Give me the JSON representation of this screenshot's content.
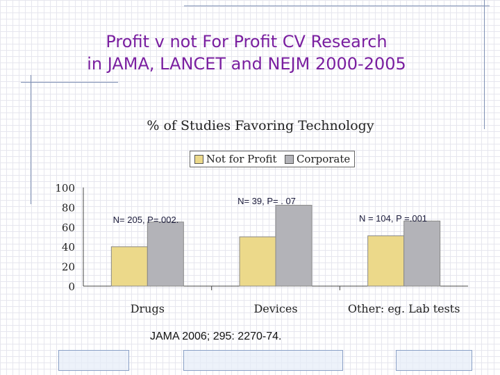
{
  "slide": {
    "title_line1": "Profit v not For Profit CV Research",
    "title_line2": "in JAMA, LANCET and NEJM 2000-2005",
    "citation": "JAMA 2006; 295: 2270-74."
  },
  "colors": {
    "title": "#7a1fa0",
    "not_for_profit": "#ecd98a",
    "corporate": "#b3b3b8"
  },
  "chart_data": {
    "type": "bar",
    "title": "% of Studies Favoring Technology",
    "categories": [
      "Drugs",
      "Devices",
      "Other: eg. Lab tests"
    ],
    "series": [
      {
        "name": "Not for Profit",
        "values": [
          40,
          50,
          51
        ]
      },
      {
        "name": "Corporate",
        "values": [
          65,
          82,
          66
        ]
      }
    ],
    "yticks": [
      0,
      20,
      40,
      60,
      80,
      100
    ],
    "ylim": [
      0,
      100
    ],
    "xlabel": "",
    "ylabel": "",
    "grid": false,
    "legend": "top-center",
    "annotations": [
      "N= 205, P=.002.",
      "N= 39, P= . 07",
      "N = 104, P =.001"
    ]
  }
}
